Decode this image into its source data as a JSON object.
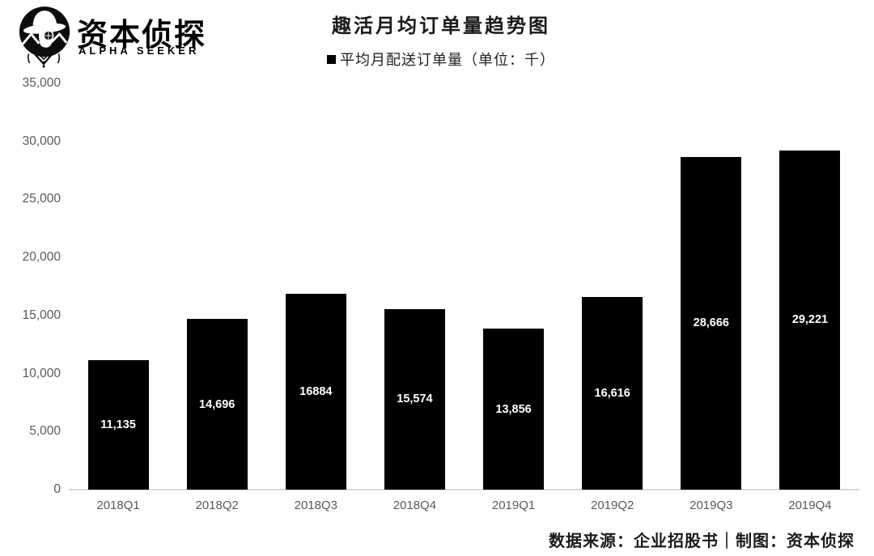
{
  "brand": {
    "name_cn": "资本侦探",
    "name_en": "ALPHA SEEKER",
    "logo_icon": "detective-icon"
  },
  "chart_data": {
    "type": "bar",
    "title": "趣活月均订单量趋势图",
    "legend": [
      {
        "label": "平均月配送订单量（单位：千）",
        "color": "#000000",
        "position": "top-center"
      }
    ],
    "categories": [
      "2018Q1",
      "2018Q2",
      "2018Q3",
      "2018Q4",
      "2019Q1",
      "2019Q2",
      "2019Q3",
      "2019Q4"
    ],
    "series": [
      {
        "name": "平均月配送订单量（单位：千）",
        "values": [
          11135,
          14696,
          16884,
          15574,
          13856,
          16616,
          28666,
          29221
        ],
        "value_labels": [
          "11,135",
          "14,696",
          "16884",
          "15,574",
          "13,856",
          "16,616",
          "28,666",
          "29,221"
        ]
      }
    ],
    "xlabel": "",
    "ylabel": "",
    "ylim": [
      0,
      35000
    ],
    "ytick_interval": 5000,
    "yticks": [
      "0",
      "5,000",
      "10,000",
      "15,000",
      "20,000",
      "25,000",
      "30,000",
      "35,000"
    ],
    "grid": false,
    "bar_color": "#000000",
    "bar_label_color": "#ffffff",
    "bar_label_position": "inside-center",
    "axis_text_color": "#595959",
    "baseline_color": "#d9d9d9"
  },
  "footer": {
    "source_note": "数据来源：企业招股书｜制图：资本侦探"
  }
}
